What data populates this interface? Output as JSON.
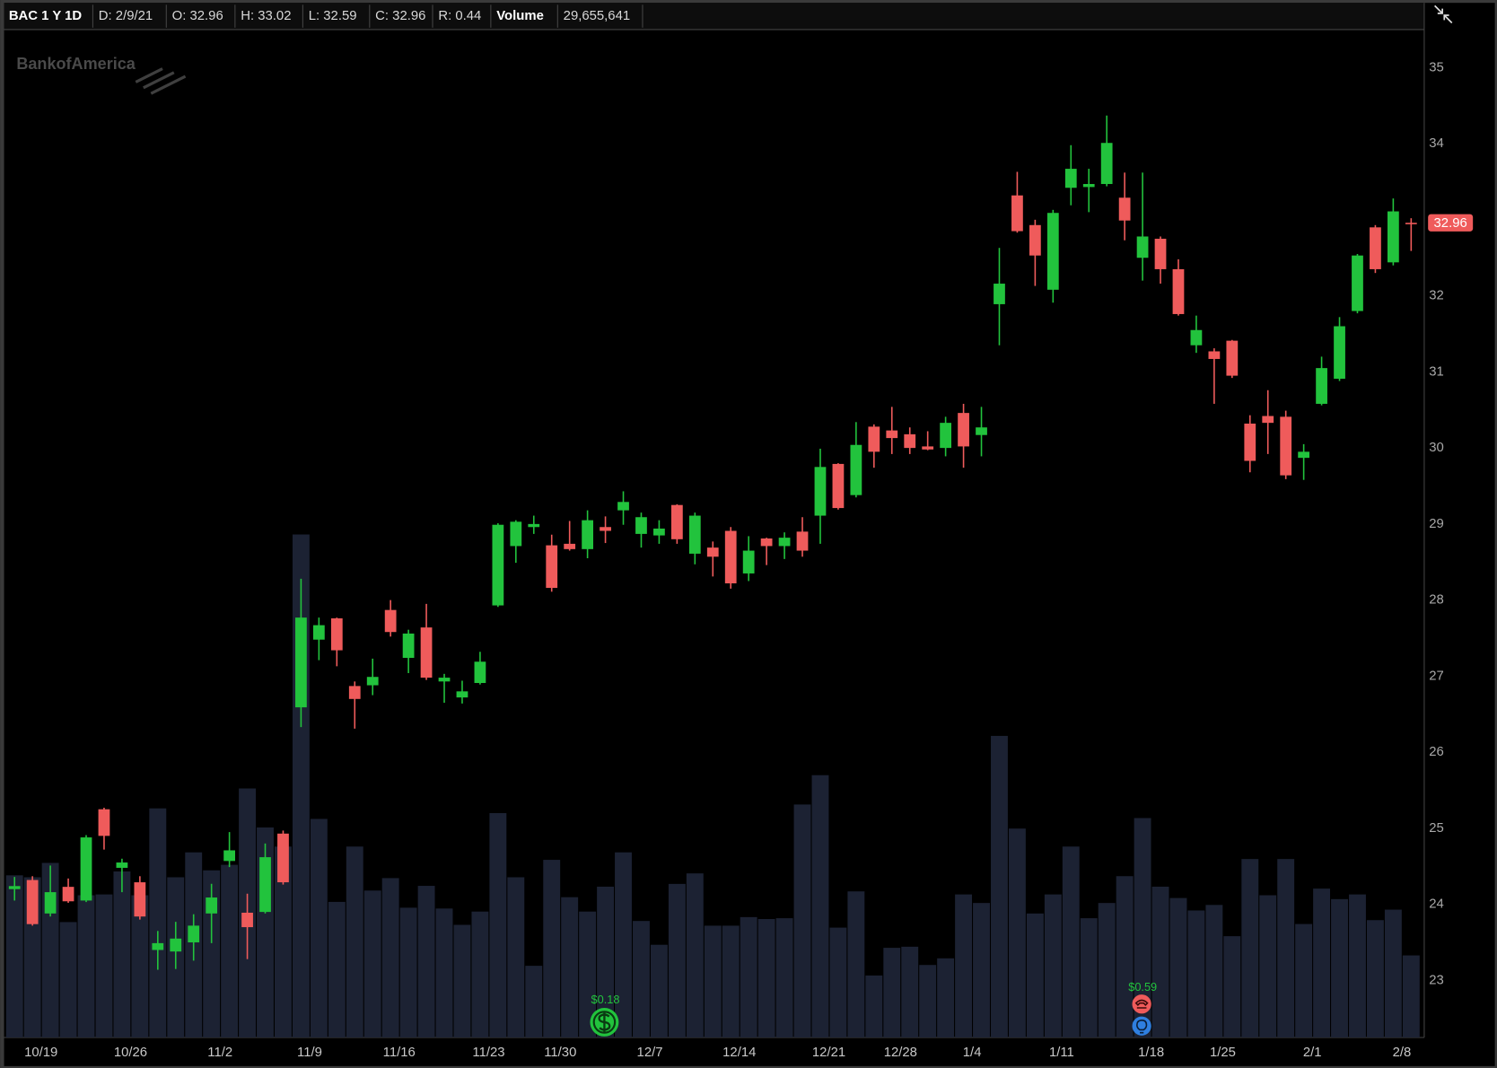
{
  "header": {
    "symbol": "BAC 1 Y 1D",
    "date": "D: 2/9/21",
    "open": "O: 32.96",
    "high": "H: 33.02",
    "low": "L: 32.59",
    "close": "C: 32.96",
    "range": "R: 0.44",
    "volume_label": "Volume",
    "volume": "29,655,641"
  },
  "chart_data": {
    "type": "candlestick",
    "watermark": "BankofAmerica",
    "annotations": [
      "$0.18",
      "$0.59"
    ],
    "up_color": "#22c33d",
    "down_color": "#ef5b5b",
    "volume_color": "#1c2233",
    "categories": [
      null,
      "10/19",
      null,
      null,
      null,
      null,
      "10/26",
      null,
      null,
      null,
      null,
      "11/2",
      null,
      null,
      null,
      null,
      "11/9",
      null,
      null,
      null,
      null,
      "11/16",
      null,
      null,
      null,
      null,
      "11/23",
      null,
      null,
      null,
      "11/30",
      null,
      null,
      null,
      null,
      "12/7",
      null,
      null,
      null,
      null,
      "12/14",
      null,
      null,
      null,
      null,
      "12/21",
      null,
      null,
      null,
      "12/28",
      null,
      null,
      null,
      "1/4",
      null,
      null,
      null,
      null,
      "1/11",
      null,
      null,
      null,
      null,
      "1/18",
      null,
      null,
      null,
      "1/25",
      null,
      null,
      null,
      null,
      "2/1",
      null,
      null,
      null,
      null,
      "2/8",
      null
    ],
    "open": [
      24.2,
      24.32,
      23.88,
      24.23,
      24.05,
      25.25,
      24.48,
      24.29,
      23.4,
      23.38,
      23.5,
      23.88,
      24.57,
      23.89,
      23.9,
      24.93,
      26.59,
      27.48,
      27.76,
      26.87,
      26.88,
      27.87,
      27.24,
      27.64,
      26.93,
      26.72,
      26.91,
      27.93,
      28.71,
      28.96,
      28.72,
      28.74,
      28.67,
      28.96,
      29.18,
      28.87,
      28.85,
      29.25,
      28.61,
      28.69,
      28.91,
      28.35,
      28.81,
      28.71,
      28.9,
      29.11,
      29.79,
      29.38,
      30.28,
      30.23,
      30.18,
      30.02,
      30.0,
      30.46,
      30.17,
      31.89,
      33.32,
      32.93,
      32.08,
      33.42,
      33.43,
      33.47,
      33.29,
      32.5,
      32.75,
      32.35,
      31.35,
      31.27,
      31.41,
      30.32,
      30.42,
      30.41,
      29.87,
      30.58,
      30.91,
      31.8,
      32.9,
      32.44,
      32.96
    ],
    "high": [
      24.36,
      24.37,
      24.51,
      24.34,
      24.91,
      25.27,
      24.6,
      24.37,
      23.65,
      23.77,
      23.87,
      24.27,
      24.95,
      24.14,
      24.8,
      24.97,
      28.28,
      27.77,
      27.77,
      26.93,
      27.23,
      28.0,
      27.61,
      27.95,
      27.03,
      26.94,
      27.32,
      29.01,
      29.05,
      29.11,
      28.86,
      29.04,
      29.18,
      29.1,
      29.43,
      29.15,
      29.05,
      29.26,
      29.15,
      28.77,
      28.96,
      28.84,
      28.82,
      28.89,
      29.09,
      29.99,
      29.8,
      30.34,
      30.31,
      30.54,
      30.27,
      30.22,
      30.41,
      30.58,
      30.54,
      32.63,
      33.63,
      33.0,
      33.13,
      33.98,
      33.67,
      34.37,
      33.62,
      33.62,
      32.78,
      32.48,
      31.74,
      31.31,
      31.42,
      30.43,
      30.76,
      30.49,
      30.05,
      31.2,
      31.72,
      32.55,
      32.93,
      33.28,
      33.02
    ],
    "low": [
      24.05,
      23.72,
      23.84,
      24.02,
      24.03,
      24.72,
      24.16,
      23.8,
      23.14,
      23.15,
      23.26,
      23.49,
      24.49,
      23.28,
      23.88,
      24.26,
      26.33,
      27.21,
      27.13,
      26.31,
      26.75,
      27.52,
      27.04,
      26.95,
      26.65,
      26.64,
      26.89,
      27.91,
      28.49,
      28.87,
      28.11,
      28.65,
      28.55,
      28.75,
      28.99,
      28.69,
      28.74,
      28.74,
      28.47,
      28.31,
      28.15,
      28.25,
      28.46,
      28.54,
      28.57,
      28.74,
      29.19,
      29.35,
      29.74,
      29.92,
      29.92,
      29.97,
      29.89,
      29.74,
      29.89,
      31.35,
      32.83,
      32.13,
      31.91,
      33.19,
      33.1,
      33.44,
      32.73,
      32.2,
      32.16,
      31.74,
      31.25,
      30.58,
      30.92,
      29.68,
      29.92,
      29.59,
      29.58,
      30.56,
      30.88,
      31.77,
      32.3,
      32.4,
      32.59
    ],
    "close": [
      24.24,
      23.74,
      24.16,
      24.04,
      24.88,
      24.9,
      24.55,
      23.84,
      23.49,
      23.55,
      23.72,
      24.09,
      24.71,
      23.7,
      24.62,
      24.29,
      27.77,
      27.67,
      27.34,
      26.7,
      26.99,
      27.58,
      27.56,
      26.98,
      26.98,
      26.8,
      27.19,
      28.99,
      29.03,
      29.0,
      28.16,
      28.67,
      29.05,
      28.91,
      29.29,
      29.09,
      28.94,
      28.8,
      29.11,
      28.57,
      28.22,
      28.65,
      28.71,
      28.82,
      28.65,
      29.75,
      29.21,
      30.04,
      29.95,
      30.13,
      30.0,
      29.98,
      30.33,
      30.02,
      30.27,
      32.16,
      32.85,
      32.53,
      33.09,
      33.67,
      33.47,
      34.01,
      32.99,
      32.78,
      32.35,
      31.76,
      31.55,
      31.17,
      30.95,
      29.83,
      30.33,
      29.64,
      29.95,
      31.05,
      31.6,
      32.53,
      32.35,
      33.11,
      32.96
    ],
    "volume": [
      58600000,
      57900000,
      63100000,
      41700000,
      51400000,
      51700000,
      60000000,
      51400000,
      82800000,
      57900000,
      66900000,
      60400000,
      62400000,
      90000000,
      75900000,
      69000000,
      181800000,
      79000000,
      49000000,
      69000000,
      53100000,
      57600000,
      46900000,
      54800000,
      46600000,
      40700000,
      45500000,
      81100000,
      57900000,
      25900000,
      64200000,
      50700000,
      45500000,
      54500000,
      66900000,
      42100000,
      33500000,
      55500000,
      59300000,
      40400000,
      40400000,
      43500000,
      42800000,
      43100000,
      84200000,
      94800000,
      39700000,
      52800000,
      22400000,
      32400000,
      32800000,
      26200000,
      28600000,
      51700000,
      48600000,
      109000000,
      75500000,
      44800000,
      51700000,
      69000000,
      43100000,
      48600000,
      58300000,
      79300000,
      54500000,
      50400000,
      45900000,
      47900000,
      36600000,
      64500000,
      51400000,
      64500000,
      41000000,
      53800000,
      50000000,
      51700000,
      42400000,
      46200000,
      29655641
    ],
    "ylim": [
      22.25,
      35.5
    ],
    "yticks": [
      23,
      24,
      25,
      26,
      27,
      28,
      29,
      30,
      31,
      32,
      33,
      34,
      35
    ],
    "grid": false
  }
}
